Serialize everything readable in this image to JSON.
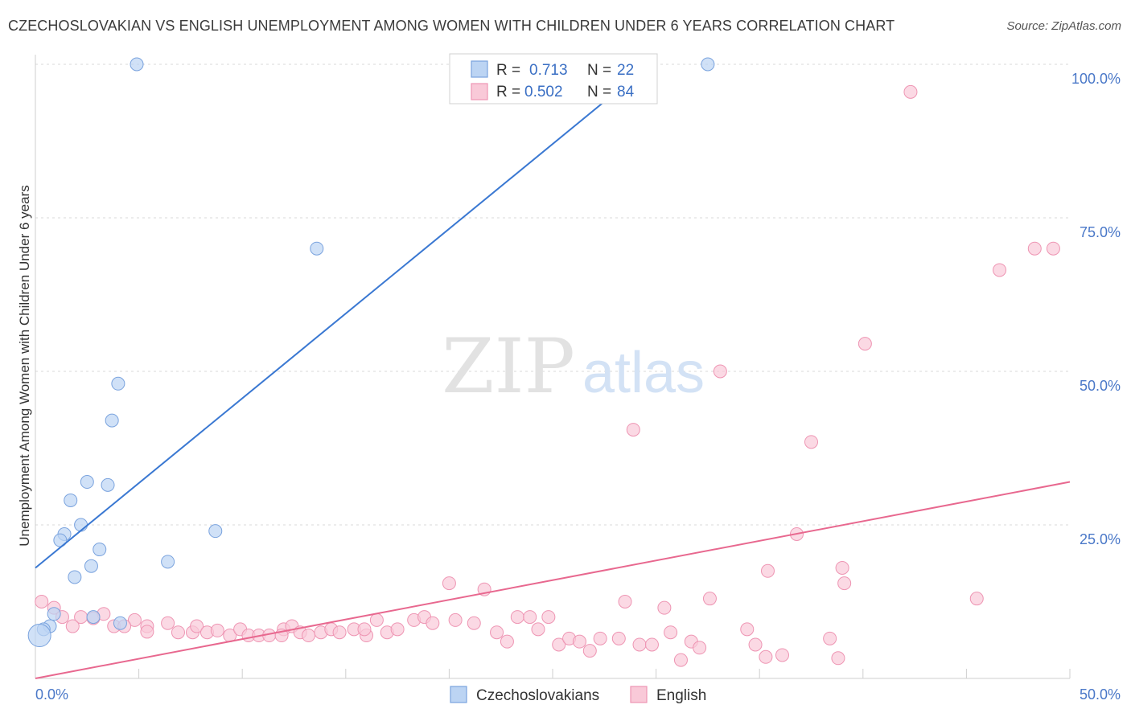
{
  "title": "CZECHOSLOVAKIAN VS ENGLISH UNEMPLOYMENT AMONG WOMEN WITH CHILDREN UNDER 6 YEARS CORRELATION CHART",
  "source": "Source: ZipAtlas.com",
  "watermark": {
    "zip": "ZIP",
    "atlas": "atlas"
  },
  "legend": {
    "rows": [
      {
        "r_label": "R =",
        "r_value": "0.713",
        "n_label": "N =",
        "n_value": "22",
        "color": "#a8c6ee"
      },
      {
        "r_label": "R =",
        "r_value": "0.502",
        "n_label": "N =",
        "n_value": "84",
        "color": "#f6b6ca"
      }
    ]
  },
  "bottom_legend": {
    "czech": "Czechoslovakians",
    "english": "English"
  },
  "colors": {
    "czech_fill": "#bcd4f3",
    "czech_stroke": "#7aa3de",
    "czech_line": "#3a78d2",
    "english_fill": "#f9c9d8",
    "english_stroke": "#ee95b3",
    "english_line": "#e8688f",
    "grid": "#d8d8d8",
    "axis_label": "#4a78c8"
  },
  "chart_data": {
    "type": "scatter",
    "title": "CZECHOSLOVAKIAN VS ENGLISH UNEMPLOYMENT AMONG WOMEN WITH CHILDREN UNDER 6 YEARS CORRELATION CHART",
    "xlabel": "",
    "ylabel": "Unemployment Among Women with Children Under 6 years",
    "xlim": [
      0,
      50
    ],
    "ylim": [
      0,
      100
    ],
    "x_tick_labels": [
      "0.0%",
      "50.0%"
    ],
    "y_tick_labels": [
      "100.0%",
      "75.0%",
      "50.0%",
      "25.0%"
    ],
    "series": [
      {
        "name": "Czechoslovakians",
        "r": 0.713,
        "n": 22,
        "trend": {
          "x": [
            0,
            29.7
          ],
          "y": [
            18,
            100
          ]
        },
        "points": [
          [
            4.9,
            100
          ],
          [
            32.5,
            100
          ],
          [
            13.6,
            70
          ],
          [
            4.0,
            48
          ],
          [
            3.7,
            42
          ],
          [
            2.5,
            32
          ],
          [
            3.5,
            31.5
          ],
          [
            1.7,
            29
          ],
          [
            2.2,
            25
          ],
          [
            1.4,
            23.5
          ],
          [
            1.2,
            22.5
          ],
          [
            8.7,
            24
          ],
          [
            3.1,
            21
          ],
          [
            6.4,
            19
          ],
          [
            2.7,
            18.3
          ],
          [
            1.9,
            16.5
          ],
          [
            0.9,
            10.5
          ],
          [
            2.8,
            10
          ],
          [
            4.1,
            9
          ],
          [
            0.7,
            8.5
          ],
          [
            0.4,
            8
          ],
          [
            0.2,
            7
          ]
        ],
        "point_radius": [
          8,
          8,
          8,
          8,
          8,
          8,
          8,
          8,
          8,
          8,
          8,
          8,
          8,
          8,
          8,
          8,
          8,
          8,
          8,
          8,
          8,
          14
        ]
      },
      {
        "name": "English",
        "r": 0.502,
        "n": 84,
        "trend": {
          "x": [
            0,
            50
          ],
          "y": [
            0,
            32
          ]
        },
        "points": [
          [
            42.3,
            95.5
          ],
          [
            48.3,
            70
          ],
          [
            49.2,
            70
          ],
          [
            46.6,
            66.5
          ],
          [
            40.1,
            54.5
          ],
          [
            33.1,
            50
          ],
          [
            28.9,
            40.5
          ],
          [
            37.5,
            38.5
          ],
          [
            36.8,
            23.5
          ],
          [
            35.4,
            17.5
          ],
          [
            39.0,
            18
          ],
          [
            39.1,
            15.5
          ],
          [
            45.5,
            13
          ],
          [
            20.0,
            15.5
          ],
          [
            21.7,
            14.5
          ],
          [
            32.6,
            13
          ],
          [
            28.5,
            12.5
          ],
          [
            30.4,
            11.5
          ],
          [
            0.3,
            12.5
          ],
          [
            0.9,
            11.5
          ],
          [
            1.3,
            10
          ],
          [
            2.2,
            10
          ],
          [
            3.3,
            10.5
          ],
          [
            4.8,
            9.5
          ],
          [
            6.4,
            9
          ],
          [
            2.8,
            9.8
          ],
          [
            3.8,
            8.5
          ],
          [
            1.8,
            8.5
          ],
          [
            4.3,
            8.5
          ],
          [
            5.4,
            8.5
          ],
          [
            6.9,
            7.5
          ],
          [
            7.6,
            7.5
          ],
          [
            7.8,
            8.5
          ],
          [
            8.3,
            7.5
          ],
          [
            8.8,
            7.8
          ],
          [
            9.4,
            7
          ],
          [
            9.9,
            8
          ],
          [
            10.3,
            7
          ],
          [
            10.8,
            7
          ],
          [
            11.3,
            7
          ],
          [
            12.0,
            8
          ],
          [
            12.4,
            8.5
          ],
          [
            12.8,
            7.5
          ],
          [
            13.2,
            7
          ],
          [
            13.8,
            7.5
          ],
          [
            14.3,
            8
          ],
          [
            14.7,
            7.5
          ],
          [
            15.4,
            8
          ],
          [
            16.0,
            7
          ],
          [
            16.5,
            9.5
          ],
          [
            17.0,
            7.5
          ],
          [
            17.5,
            8
          ],
          [
            18.3,
            9.5
          ],
          [
            18.8,
            10
          ],
          [
            19.2,
            9
          ],
          [
            20.3,
            9.5
          ],
          [
            21.2,
            9
          ],
          [
            22.3,
            7.5
          ],
          [
            22.8,
            6
          ],
          [
            23.3,
            10
          ],
          [
            23.9,
            10
          ],
          [
            24.3,
            8
          ],
          [
            24.8,
            10
          ],
          [
            25.3,
            5.5
          ],
          [
            25.8,
            6.5
          ],
          [
            26.3,
            6
          ],
          [
            26.8,
            4.5
          ],
          [
            27.3,
            6.5
          ],
          [
            28.2,
            6.5
          ],
          [
            29.2,
            5.5
          ],
          [
            29.8,
            5.5
          ],
          [
            30.7,
            7.5
          ],
          [
            31.2,
            3
          ],
          [
            31.7,
            6
          ],
          [
            32.1,
            5
          ],
          [
            34.4,
            8
          ],
          [
            34.8,
            5.5
          ],
          [
            35.3,
            3.5
          ],
          [
            36.1,
            3.8
          ],
          [
            38.4,
            6.5
          ],
          [
            38.8,
            3.3
          ],
          [
            15.9,
            8
          ],
          [
            11.9,
            7
          ],
          [
            5.4,
            7.6
          ]
        ],
        "point_radius": 8
      }
    ]
  }
}
